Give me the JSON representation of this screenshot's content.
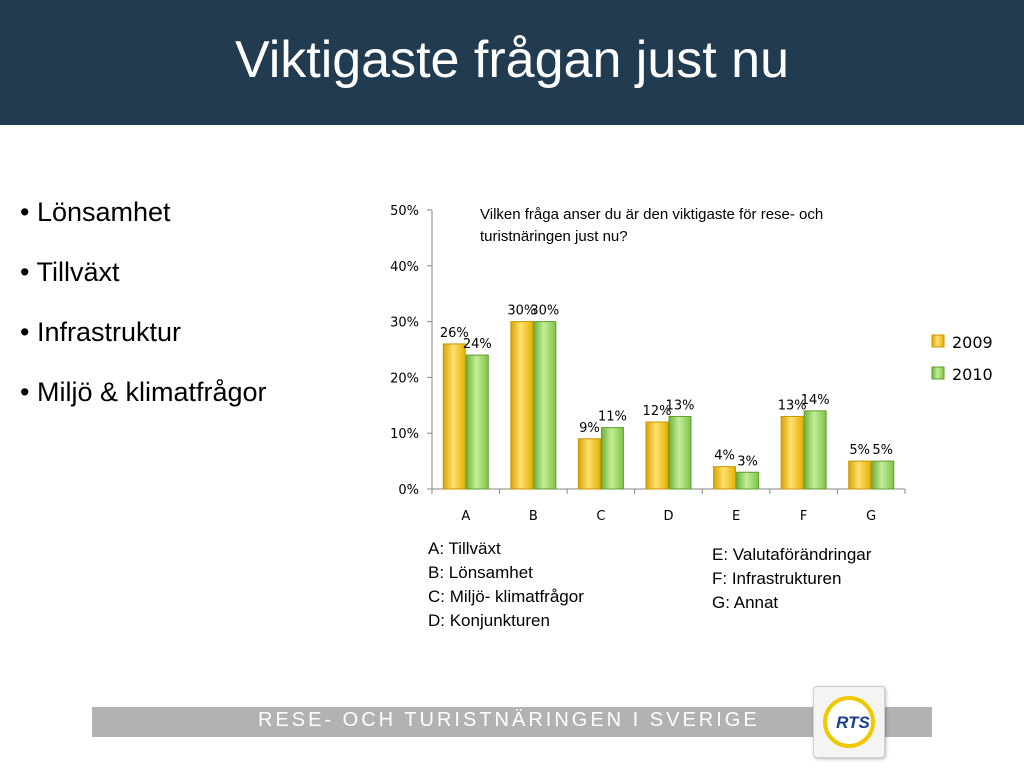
{
  "slide": {
    "title": "Viktigaste frågan just nu",
    "bullets": [
      "• Lönsamhet",
      "• Tillväxt",
      "• Infrastruktur",
      "• Miljö & klimatfrågor"
    ]
  },
  "chart_data": {
    "type": "bar",
    "title": "Vilken fråga anser du är den viktigaste för rese- och turistnäringen just nu?",
    "title_lines": [
      "Vilken fråga anser du är den viktigaste för rese- och",
      "turistnäringen just nu?"
    ],
    "categories": [
      "A",
      "B",
      "C",
      "D",
      "E",
      "F",
      "G"
    ],
    "series": [
      {
        "name": "2009",
        "values": [
          26,
          30,
          9,
          12,
          4,
          13,
          5
        ],
        "labels": [
          "26%",
          "30%",
          "9%",
          "12%",
          "4%",
          "13%",
          "5%"
        ],
        "color": "#f5c400"
      },
      {
        "name": "2010",
        "values": [
          24,
          30,
          11,
          13,
          3,
          14,
          5
        ],
        "labels": [
          "24%",
          "30%",
          "11%",
          "13%",
          "3%",
          "14%",
          "5%"
        ],
        "color": "#8fd14f"
      }
    ],
    "ylim": [
      0,
      50
    ],
    "yticks": [
      0,
      10,
      20,
      30,
      40,
      50
    ],
    "ytick_labels": [
      "0%",
      "10%",
      "20%",
      "30%",
      "40%",
      "50%"
    ],
    "grid": false,
    "legend_position": "right",
    "xlabel": "",
    "ylabel": ""
  },
  "category_legend": {
    "left": [
      "A: Tillväxt",
      "B: Lönsamhet",
      "C: Miljö- klimatfrågor",
      "D: Konjunkturen"
    ],
    "right": [
      "E: Valutaförändringar",
      "F: Infrastrukturen",
      "G: Annat"
    ]
  },
  "footer": {
    "text": "RESE- OCH TURISTNÄRINGEN I SVERIGE",
    "logo_text": "RTS"
  },
  "colors": {
    "title_bar": "#213c50",
    "footer_bar": "#b2b2b2",
    "bar_2009": "#f5c400",
    "bar_2010": "#8fd14f"
  }
}
